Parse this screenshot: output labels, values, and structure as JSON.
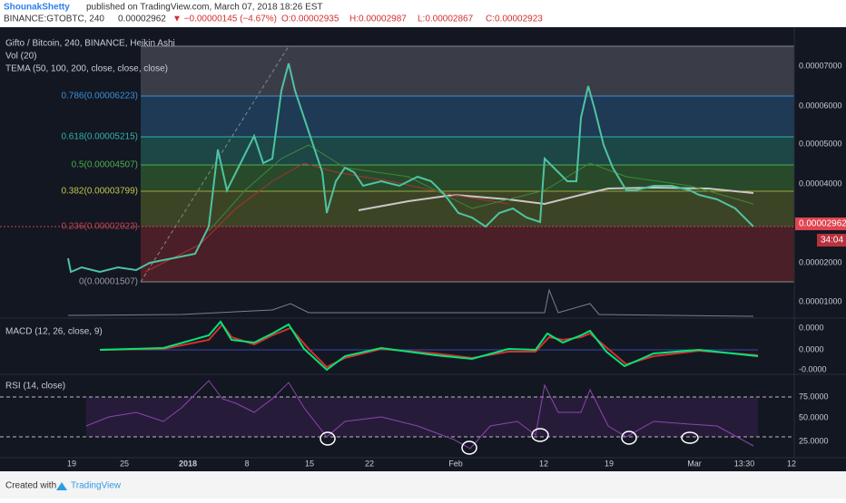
{
  "header": {
    "author": "ShounakShetty",
    "published": "published on TradingView.com, March 07, 2018 18:26 EST",
    "symbol": "BINANCE:GTOBTC, 240",
    "last": "0.00002962",
    "change": "▼ −0.00000145 (−4.67%)",
    "open": "O:0.00002935",
    "high": "H:0.00002987",
    "low": "L:0.00002867",
    "close": "C:0.00002923"
  },
  "legend": {
    "main": "Gifto / Bitcoin, 240, BINANCE, Heikin Ashi",
    "volume": "Vol (20)",
    "tema": "TEMA (50, 100, 200, close, close, close)",
    "macd": "MACD (12, 26, close, 9)",
    "rsi": "RSI (14, close)"
  },
  "fib_levels": [
    "0.786(0.00006223)",
    "0.618(0.00005215)",
    "0.5(0.00004507)",
    "0.382(0.00003799)",
    "0.236(0.00002923)",
    "0(0.00001507)"
  ],
  "price_axis": [
    "0.00007000",
    "0.00006000",
    "0.00005000",
    "0.00004000",
    "0.00002000",
    "0.00001000"
  ],
  "price_tag": "0.00002962",
  "countdown": "34:04",
  "macd_axis": [
    "0.0000",
    "0.0000",
    "-0.0000"
  ],
  "rsi_axis": [
    "75.0000",
    "50.0000",
    "25.0000"
  ],
  "time_axis": [
    "19",
    "25",
    "2018",
    "8",
    "15",
    "22",
    "Feb",
    "12",
    "19",
    "Mar",
    "13:30",
    "12"
  ],
  "footer": {
    "created": "Created with",
    "brand": "TradingView"
  }
}
